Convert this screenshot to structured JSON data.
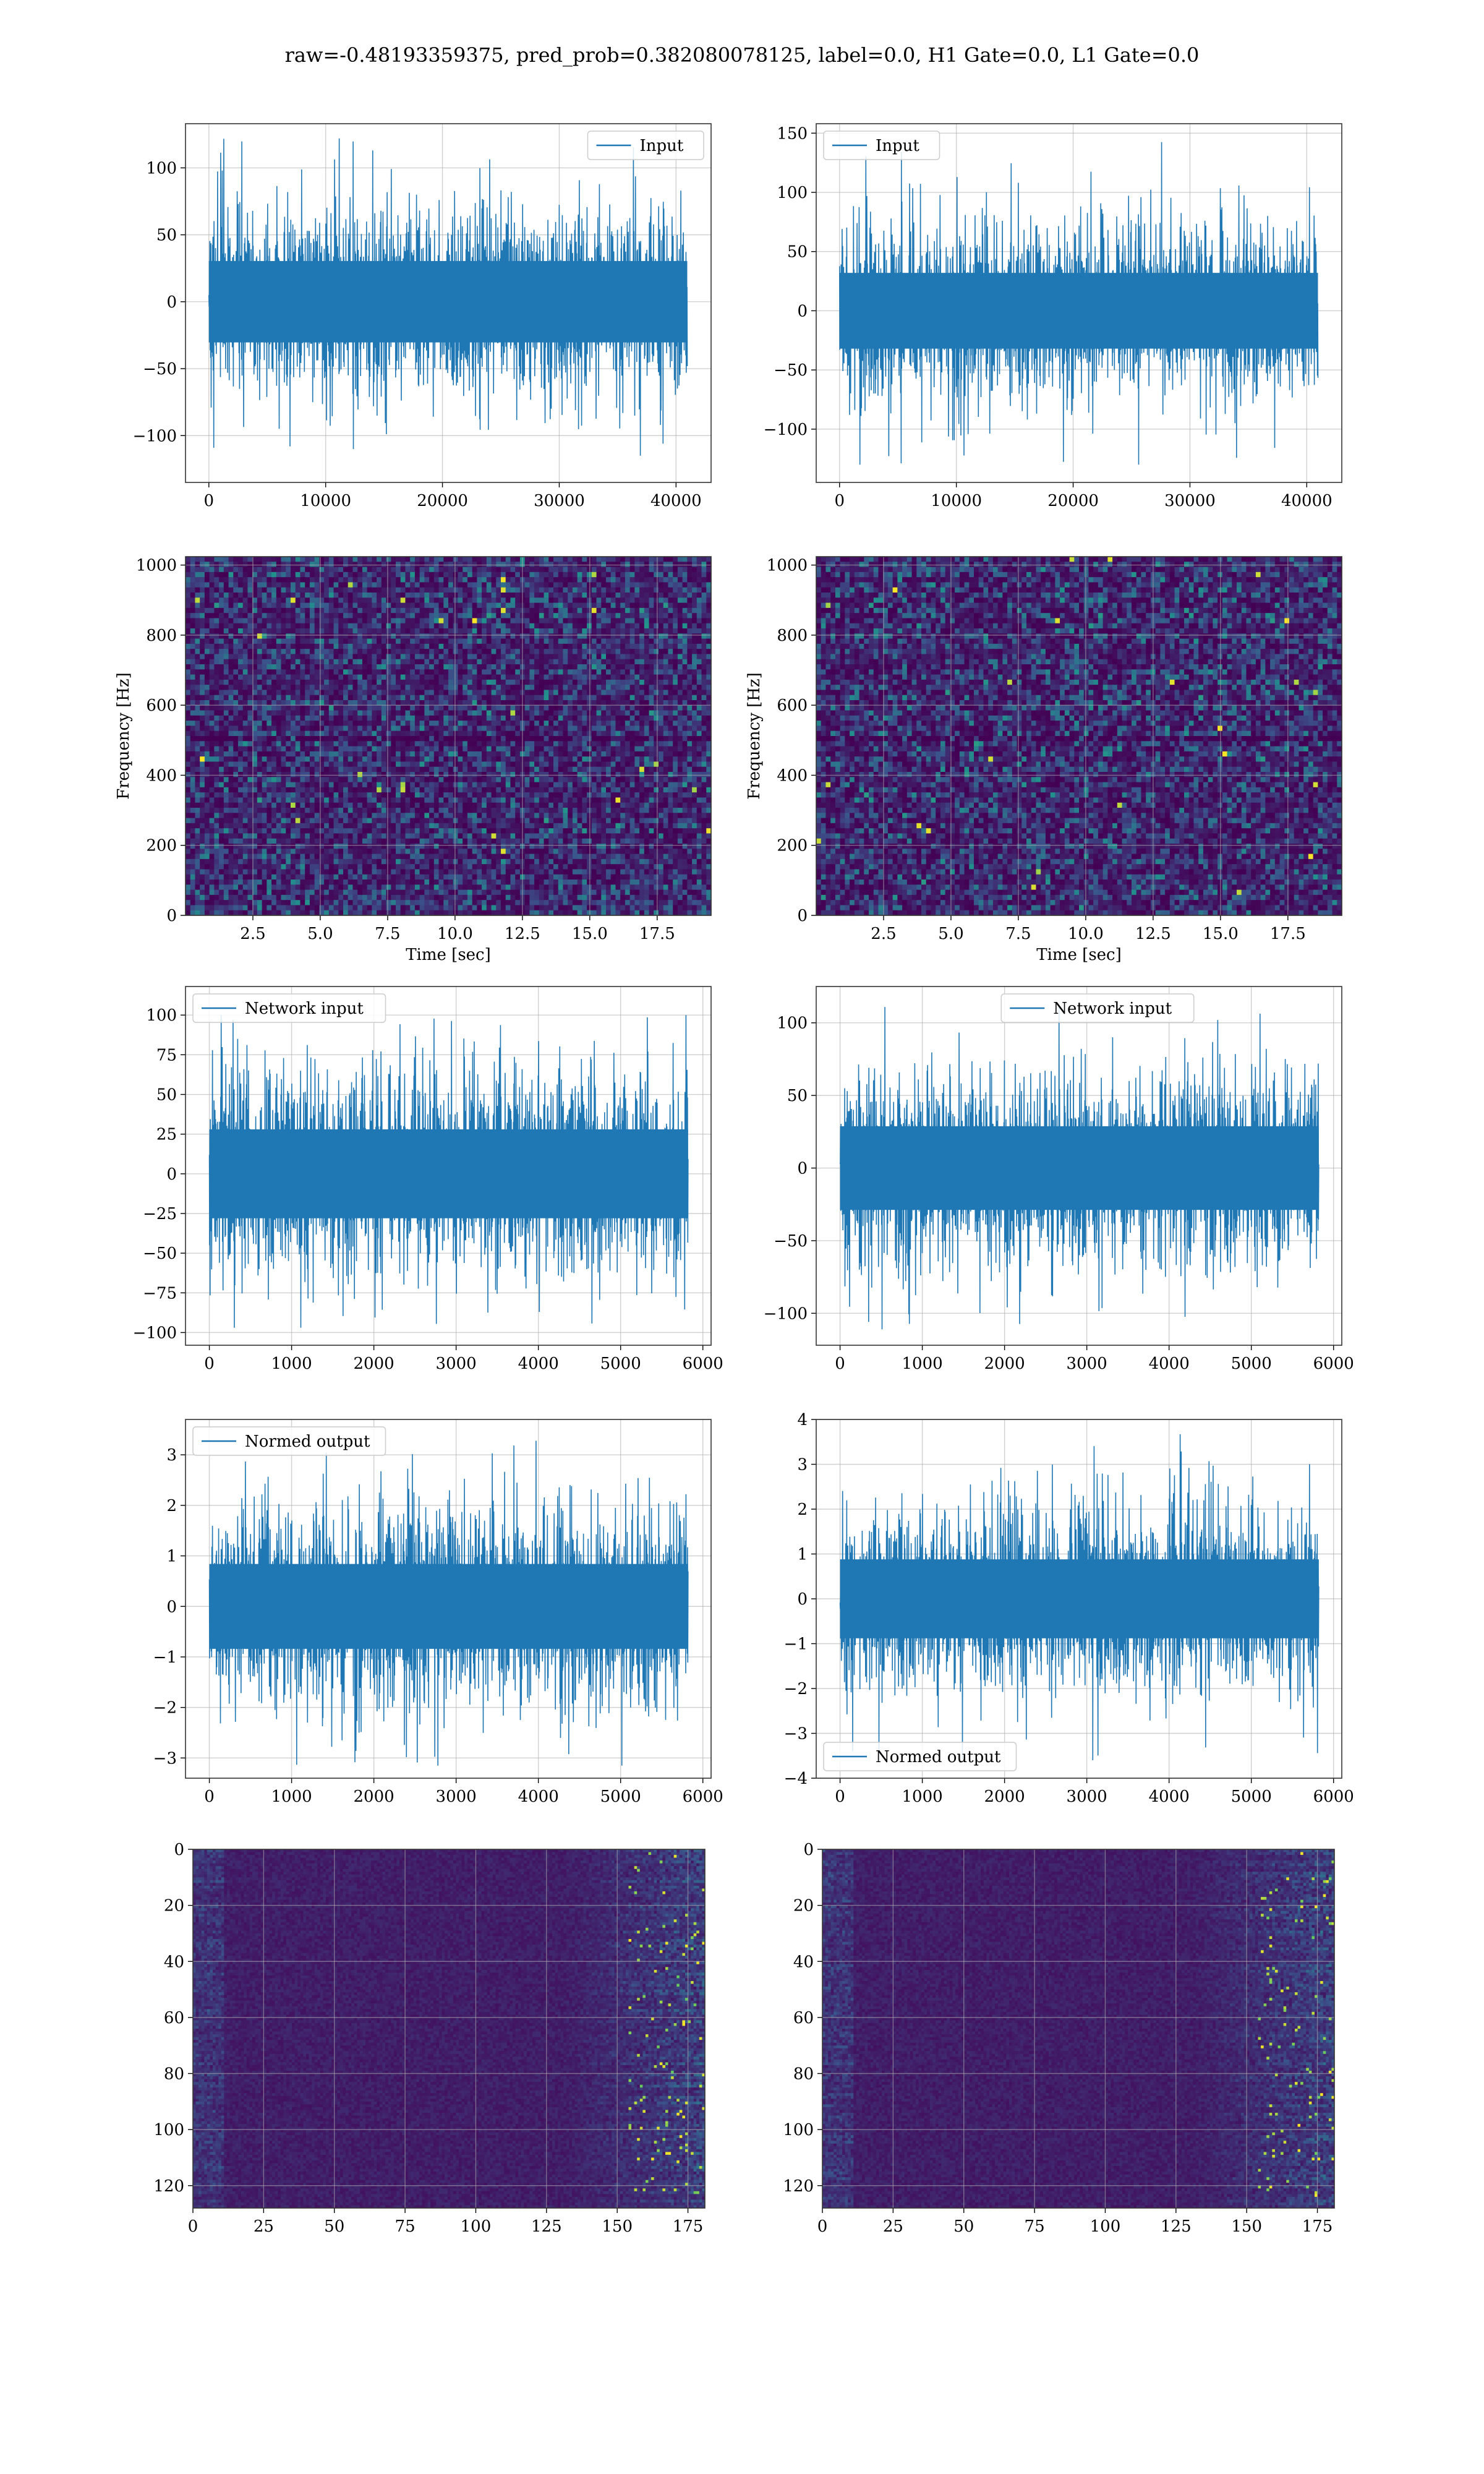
{
  "figure": {
    "suptitle": "raw=-0.48193359375, pred_prob=0.382080078125, label=0.0, H1 Gate=0.0, L1 Gate=0.0"
  },
  "colors": {
    "series": "#1f77b4",
    "grid": "#b0b0b0",
    "viridis_low": "#440154",
    "viridis_mid": "#21918c",
    "viridis_high": "#fde725"
  },
  "chart_data": [
    {
      "id": "h1-input",
      "type": "line",
      "series": [
        {
          "name": "Input"
        }
      ],
      "legend": "top-right",
      "xlim": [
        -2000,
        43000
      ],
      "ylim": [
        -135,
        133
      ],
      "xticks": [
        0,
        10000,
        20000,
        30000,
        40000
      ],
      "yticks": [
        -100,
        -50,
        0,
        50,
        100
      ],
      "signal": {
        "x_start": 0,
        "x_end": 40960,
        "core_amplitude": 38,
        "peak_amplitude": 122,
        "trough": -115
      },
      "grid": true,
      "xlabel": "",
      "ylabel": ""
    },
    {
      "id": "l1-input",
      "type": "line",
      "series": [
        {
          "name": "Input"
        }
      ],
      "legend": "top-left",
      "xlim": [
        -2000,
        43000
      ],
      "ylim": [
        -145,
        158
      ],
      "xticks": [
        0,
        10000,
        20000,
        30000,
        40000
      ],
      "yticks": [
        -100,
        -50,
        0,
        50,
        100,
        150
      ],
      "signal": {
        "x_start": 0,
        "x_end": 40960,
        "core_amplitude": 40,
        "peak_amplitude": 145,
        "trough": -130
      },
      "grid": true,
      "xlabel": "",
      "ylabel": ""
    },
    {
      "id": "h1-spectrogram",
      "type": "heatmap",
      "xlim": [
        0,
        19.5
      ],
      "ylim": [
        0,
        1024
      ],
      "xticks": [
        2.5,
        5.0,
        7.5,
        10.0,
        12.5,
        15.0,
        17.5
      ],
      "xtick_labels": [
        "2.5",
        "5.0",
        "7.5",
        "10.0",
        "12.5",
        "15.0",
        "17.5"
      ],
      "yticks": [
        0,
        200,
        400,
        600,
        800,
        1000
      ],
      "xlabel": "Time [sec]",
      "ylabel": "Frequency [Hz]",
      "colormap": "viridis",
      "grid": true
    },
    {
      "id": "l1-spectrogram",
      "type": "heatmap",
      "xlim": [
        0,
        19.5
      ],
      "ylim": [
        0,
        1024
      ],
      "xticks": [
        2.5,
        5.0,
        7.5,
        10.0,
        12.5,
        15.0,
        17.5
      ],
      "xtick_labels": [
        "2.5",
        "5.0",
        "7.5",
        "10.0",
        "12.5",
        "15.0",
        "17.5"
      ],
      "yticks": [
        0,
        200,
        400,
        600,
        800,
        1000
      ],
      "xlabel": "Time [sec]",
      "ylabel": "Frequency [Hz]",
      "colormap": "viridis",
      "grid": true
    },
    {
      "id": "h1-network-input",
      "type": "line",
      "series": [
        {
          "name": "Network input"
        }
      ],
      "legend": "top-left",
      "xlim": [
        -290,
        6100
      ],
      "ylim": [
        -108,
        118
      ],
      "xticks": [
        0,
        1000,
        2000,
        3000,
        4000,
        5000,
        6000
      ],
      "yticks": [
        -100,
        -75,
        -50,
        -25,
        0,
        25,
        50,
        75,
        100
      ],
      "signal": {
        "x_start": 0,
        "x_end": 5820,
        "core_amplitude": 35,
        "peak_amplitude": 100,
        "trough": -97
      },
      "grid": true,
      "xlabel": "",
      "ylabel": ""
    },
    {
      "id": "l1-network-input",
      "type": "line",
      "series": [
        {
          "name": "Network input"
        }
      ],
      "legend": "top-center",
      "xlim": [
        -290,
        6100
      ],
      "ylim": [
        -122,
        125
      ],
      "xticks": [
        0,
        1000,
        2000,
        3000,
        4000,
        5000,
        6000
      ],
      "yticks": [
        -100,
        -50,
        0,
        50,
        100
      ],
      "signal": {
        "x_start": 0,
        "x_end": 5820,
        "core_amplitude": 36,
        "peak_amplitude": 114,
        "trough": -111
      },
      "grid": true,
      "xlabel": "",
      "ylabel": ""
    },
    {
      "id": "h1-normed-output",
      "type": "line",
      "series": [
        {
          "name": "Normed output"
        }
      ],
      "legend": "top-left",
      "xlim": [
        -290,
        6100
      ],
      "ylim": [
        -3.4,
        3.7
      ],
      "xticks": [
        0,
        1000,
        2000,
        3000,
        4000,
        5000,
        6000
      ],
      "yticks": [
        -3,
        -2,
        -1,
        0,
        1,
        2,
        3
      ],
      "signal": {
        "x_start": 0,
        "x_end": 5820,
        "core_amplitude": 1.05,
        "peak_amplitude": 3.4,
        "trough": -3.15
      },
      "grid": true,
      "xlabel": "",
      "ylabel": ""
    },
    {
      "id": "l1-normed-output",
      "type": "line",
      "series": [
        {
          "name": "Normed output"
        }
      ],
      "legend": "bottom-left",
      "xlim": [
        -290,
        6100
      ],
      "ylim": [
        -4,
        4
      ],
      "xticks": [
        0,
        1000,
        2000,
        3000,
        4000,
        5000,
        6000
      ],
      "yticks": [
        -4,
        -3,
        -2,
        -1,
        0,
        1,
        2,
        3,
        4
      ],
      "signal": {
        "x_start": 0,
        "x_end": 5820,
        "core_amplitude": 1.1,
        "peak_amplitude": 3.7,
        "trough": -3.6
      },
      "grid": true,
      "xlabel": "",
      "ylabel": ""
    },
    {
      "id": "h1-feature-map",
      "type": "heatmap",
      "xlim": [
        0,
        181
      ],
      "ylim": [
        128,
        0
      ],
      "xticks": [
        0,
        25,
        50,
        75,
        100,
        125,
        150,
        175
      ],
      "yticks": [
        0,
        20,
        40,
        60,
        80,
        100,
        120
      ],
      "colormap": "viridis",
      "grid": true,
      "xlabel": "",
      "ylabel": ""
    },
    {
      "id": "l1-feature-map",
      "type": "heatmap",
      "xlim": [
        0,
        181
      ],
      "ylim": [
        128,
        0
      ],
      "xticks": [
        0,
        25,
        50,
        75,
        100,
        125,
        150,
        175
      ],
      "yticks": [
        0,
        20,
        40,
        60,
        80,
        100,
        120
      ],
      "colormap": "viridis",
      "grid": true,
      "xlabel": "",
      "ylabel": ""
    }
  ]
}
